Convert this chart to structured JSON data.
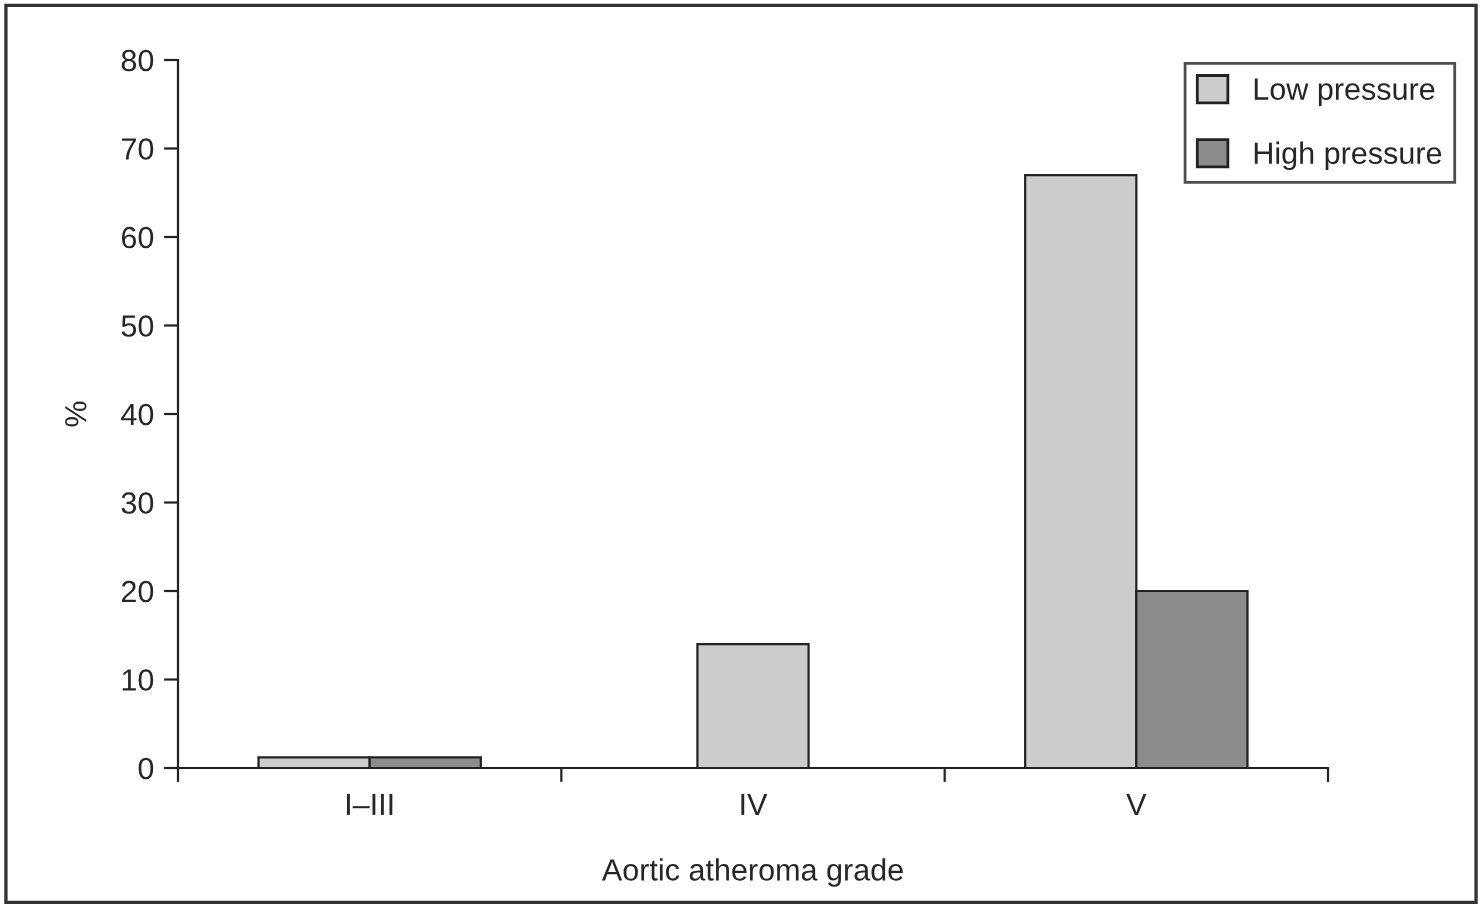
{
  "chart_data": {
    "type": "bar",
    "xlabel": "Aortic atheroma grade",
    "ylabel": "%",
    "categories": [
      "I–III",
      "IV",
      "V"
    ],
    "series": [
      {
        "name": "Low pressure",
        "color": "#cccccc",
        "values": [
          1.2,
          14,
          67
        ]
      },
      {
        "name": "High pressure",
        "color": "#8c8c8c",
        "values": [
          1.2,
          null,
          20
        ]
      }
    ],
    "ylim": [
      0,
      80
    ],
    "yticks": [
      0,
      10,
      20,
      30,
      40,
      50,
      60,
      70,
      80
    ],
    "grid": false,
    "legend": "top right"
  }
}
